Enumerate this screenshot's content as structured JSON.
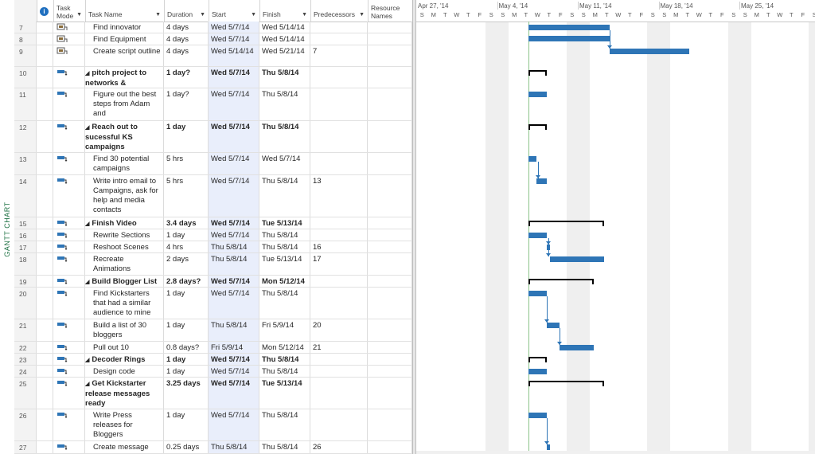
{
  "side_label": "GANTT CHART",
  "columns": {
    "mode": "Task Mode",
    "name": "Task Name",
    "duration": "Duration",
    "start": "Start",
    "finish": "Finish",
    "predecessors": "Predecessors",
    "resources": "Resource Names"
  },
  "tasks": [
    {
      "id": "7",
      "mode": "manual",
      "name": "Find innovator",
      "duration": "4 days",
      "start": "Wed 5/7/14",
      "finish": "Wed 5/14/14",
      "pred": "",
      "summary": false
    },
    {
      "id": "8",
      "mode": "manual",
      "name": "Find Equipment",
      "duration": "4 days",
      "start": "Wed 5/7/14",
      "finish": "Wed 5/14/14",
      "pred": "",
      "summary": false
    },
    {
      "id": "9",
      "mode": "manual",
      "name": "Create script outline",
      "duration": "4 days",
      "start": "Wed 5/14/14",
      "finish": "Wed 5/21/14",
      "pred": "7",
      "summary": false
    },
    {
      "id": "10",
      "mode": "auto",
      "name": "pitch project to networks &",
      "duration": "1 day?",
      "start": "Wed 5/7/14",
      "finish": "Thu 5/8/14",
      "pred": "",
      "summary": true
    },
    {
      "id": "11",
      "mode": "auto",
      "name": "Figure out the best steps from Adam and",
      "duration": "1 day?",
      "start": "Wed 5/7/14",
      "finish": "Thu 5/8/14",
      "pred": "",
      "summary": false
    },
    {
      "id": "12",
      "mode": "auto",
      "name": "Reach out to sucessful KS campaigns",
      "duration": "1 day",
      "start": "Wed 5/7/14",
      "finish": "Thu 5/8/14",
      "pred": "",
      "summary": true
    },
    {
      "id": "13",
      "mode": "auto",
      "name": "Find 30 potential campaigns",
      "duration": "5 hrs",
      "start": "Wed 5/7/14",
      "finish": "Wed 5/7/14",
      "pred": "",
      "summary": false
    },
    {
      "id": "14",
      "mode": "auto",
      "name": "Write intro email to Campaigns, ask for help and media contacts",
      "duration": "5 hrs",
      "start": "Wed 5/7/14",
      "finish": "Thu 5/8/14",
      "pred": "13",
      "summary": false
    },
    {
      "id": "15",
      "mode": "auto",
      "name": "Finish Video",
      "duration": "3.4 days",
      "start": "Wed 5/7/14",
      "finish": "Tue 5/13/14",
      "pred": "",
      "summary": true
    },
    {
      "id": "16",
      "mode": "auto",
      "name": "Rewrite Sections",
      "duration": "1 day",
      "start": "Wed 5/7/14",
      "finish": "Thu 5/8/14",
      "pred": "",
      "summary": false
    },
    {
      "id": "17",
      "mode": "auto",
      "name": "Reshoot Scenes",
      "duration": "4 hrs",
      "start": "Thu 5/8/14",
      "finish": "Thu 5/8/14",
      "pred": "16",
      "summary": false
    },
    {
      "id": "18",
      "mode": "auto",
      "name": "Recreate Animations",
      "duration": "2 days",
      "start": "Thu 5/8/14",
      "finish": "Tue 5/13/14",
      "pred": "17",
      "summary": false
    },
    {
      "id": "19",
      "mode": "auto",
      "name": "Build Blogger List",
      "duration": "2.8 days?",
      "start": "Wed 5/7/14",
      "finish": "Mon 5/12/14",
      "pred": "",
      "summary": true
    },
    {
      "id": "20",
      "mode": "auto",
      "name": "Find Kickstarters that had a similar audience to mine",
      "duration": "1 day",
      "start": "Wed 5/7/14",
      "finish": "Thu 5/8/14",
      "pred": "",
      "summary": false
    },
    {
      "id": "21",
      "mode": "auto",
      "name": "Build a list of 30 bloggers",
      "duration": "1 day",
      "start": "Thu 5/8/14",
      "finish": "Fri 5/9/14",
      "pred": "20",
      "summary": false
    },
    {
      "id": "22",
      "mode": "auto",
      "name": "Pull out 10",
      "duration": "0.8 days?",
      "start": "Fri 5/9/14",
      "finish": "Mon 5/12/14",
      "pred": "21",
      "summary": false
    },
    {
      "id": "23",
      "mode": "auto",
      "name": "Decoder Rings",
      "duration": "1 day",
      "start": "Wed 5/7/14",
      "finish": "Thu 5/8/14",
      "pred": "",
      "summary": true
    },
    {
      "id": "24",
      "mode": "auto",
      "name": "Design code",
      "duration": "1 day",
      "start": "Wed 5/7/14",
      "finish": "Thu 5/8/14",
      "pred": "",
      "summary": false
    },
    {
      "id": "25",
      "mode": "auto",
      "name": "Get Kickstarter release messages ready",
      "duration": "3.25 days",
      "start": "Wed 5/7/14",
      "finish": "Tue 5/13/14",
      "pred": "",
      "summary": true
    },
    {
      "id": "26",
      "mode": "auto",
      "name": "Write Press releases for Bloggers",
      "duration": "1 day",
      "start": "Wed 5/7/14",
      "finish": "Thu 5/8/14",
      "pred": "",
      "summary": false
    },
    {
      "id": "27",
      "mode": "auto",
      "name": "Create message",
      "duration": "0.25 days",
      "start": "Thu 5/8/14",
      "finish": "Thu 5/8/14",
      "pred": "26",
      "summary": false
    }
  ],
  "timeline": {
    "weeks": [
      "Apr 27, '14",
      "May 4, '14",
      "May 11, '14",
      "May 18, '14",
      "May 25, '14"
    ],
    "day_letters": [
      "S",
      "M",
      "T",
      "W",
      "T",
      "F",
      "S"
    ]
  },
  "colors": {
    "bar": "#2e75b6",
    "shade": "#efefef",
    "today": "#8bc48a",
    "side_label": "#217346"
  }
}
